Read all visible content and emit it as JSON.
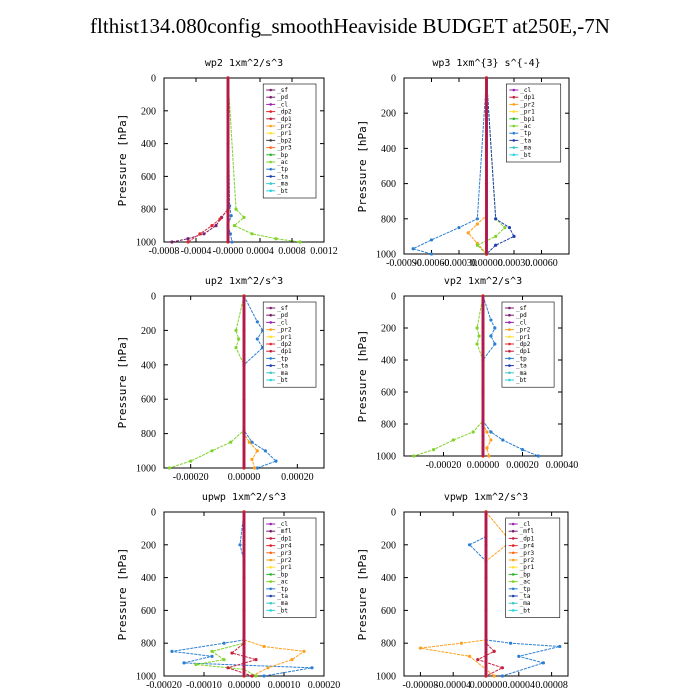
{
  "title": "flthist134.080config_smoothHeaviside  BUDGET at250E,-7N",
  "colors": {
    "_sf": "#7a1f6e",
    "_pd": "#7a1f6e",
    "_cl": "#9b1fb0",
    "_dp2": "#e3262d",
    "_pr2": "#ff9f1c",
    "_pr1": "#ffe033",
    "_bp": "#2db52d",
    "_bp1": "#2db52d",
    "_ac": "#7fd32a",
    "_tp": "#2a7fd3",
    "_ta": "#1f3fb0",
    "_ma": "#40c8c8",
    "_bt": "#2ad3e3",
    "_dp1": "#c71e3a",
    "_mfl": "#7a1f6e",
    "_pr4": "#e3262d",
    "_pr3": "#ff6a1c",
    "_bt_line": "#8b1a8b",
    "_main": "#d11f1f"
  },
  "chart_data": [
    {
      "type": "line",
      "title": "wp2   1xm^2/s^3",
      "ylabel": "Pressure [hPa]",
      "xlim": [
        -0.0008,
        0.0012
      ],
      "ylim": [
        1000,
        0
      ],
      "xticks": [
        "-0.0008",
        "-0.0004",
        "-0.0000",
        "0.0004",
        "0.0008",
        "0.0012"
      ],
      "yticks": [
        "0",
        "200",
        "400",
        "600",
        "800",
        "1000"
      ],
      "legend": [
        "_sf",
        "_pd",
        "_cl",
        "_dp2",
        "_dp1",
        "_pr2",
        "_pr1",
        "_bp2",
        "_pr3",
        "_bp",
        "_ac",
        "_tp",
        "_ta",
        "_ma",
        "_bt"
      ],
      "series": [
        {
          "name": "_pd",
          "x": [
            0,
            0,
            -8e-05,
            -0.00015,
            -0.0003,
            -0.0005,
            -0.0007
          ],
          "y": [
            0,
            800,
            850,
            900,
            950,
            980,
            1000
          ]
        },
        {
          "name": "_dp2",
          "x": [
            0,
            0,
            -0.0001,
            -0.0002,
            -0.00035,
            -0.0005
          ],
          "y": [
            0,
            800,
            860,
            900,
            950,
            1000
          ]
        },
        {
          "name": "_ac",
          "x": [
            0,
            0.0001,
            0.0002,
            8e-05,
            0.0003,
            0.0006,
            0.0009
          ],
          "y": [
            0,
            800,
            850,
            900,
            950,
            980,
            1000
          ]
        },
        {
          "name": "_tp",
          "x": [
            0,
            2e-05,
            4e-05,
            0,
            3e-05,
            5e-05
          ],
          "y": [
            0,
            780,
            840,
            900,
            950,
            1000
          ]
        },
        {
          "name": "_bt",
          "x": [
            0,
            0,
            0,
            0,
            0,
            0
          ],
          "y": [
            0,
            200,
            400,
            600,
            800,
            1000
          ]
        }
      ]
    },
    {
      "type": "line",
      "title": "wp3   1xm^{3} s^{-4}",
      "ylabel": "Pressure [hPa]",
      "xlim": [
        -0.0009,
        0.0009
      ],
      "ylim": [
        1000,
        0
      ],
      "xticks": [
        "-0.00090",
        "-0.00060",
        "-0.00030",
        "0.00000",
        "0.00030",
        "0.00060"
      ],
      "yticks": [
        "0",
        "200",
        "400",
        "600",
        "800",
        "1000"
      ],
      "legend": [
        "_cl",
        "_dp1",
        "_pr2",
        "_pr1",
        "_bp1",
        "_ac",
        "_tp",
        "_ta",
        "_ma",
        "_bt"
      ],
      "series": [
        {
          "name": "_pr2",
          "x": [
            0,
            0,
            -0.0001,
            -0.0002,
            -0.0001,
            0
          ],
          "y": [
            0,
            780,
            830,
            880,
            940,
            1000
          ]
        },
        {
          "name": "_ac",
          "x": [
            0,
            0.0001,
            0.0002,
            0.0001,
            -0.0001,
            0
          ],
          "y": [
            0,
            800,
            850,
            900,
            950,
            1000
          ]
        },
        {
          "name": "_ta",
          "x": [
            0,
            0.0001,
            0.00025,
            0.0003,
            0.0001,
            0
          ],
          "y": [
            0,
            800,
            850,
            900,
            950,
            1000
          ]
        },
        {
          "name": "_tp",
          "x": [
            0,
            -0.0001,
            -0.0003,
            -0.0006,
            -0.0008,
            -0.0006
          ],
          "y": [
            0,
            800,
            850,
            920,
            970,
            1000
          ]
        },
        {
          "name": "_bt",
          "x": [
            0,
            0,
            0,
            0,
            0,
            0
          ],
          "y": [
            0,
            200,
            400,
            600,
            800,
            1000
          ]
        }
      ]
    },
    {
      "type": "line",
      "title": "up2   1xm^2/s^3",
      "ylabel": "Pressure [hPa]",
      "xlim": [
        -0.0003,
        0.0003
      ],
      "ylim": [
        1000,
        0
      ],
      "xticks": [
        "-0.00020",
        "0.00000",
        "0.00020"
      ],
      "yticks": [
        "0",
        "200",
        "400",
        "600",
        "800",
        "1000"
      ],
      "legend": [
        "_sf",
        "_pd",
        "_cl",
        "_pr2",
        "_pr1",
        "_dp2",
        "_dp1",
        "_tp",
        "_ta",
        "_ma",
        "_bt"
      ],
      "series": [
        {
          "name": "_tp",
          "x": [
            0,
            5e-05,
            7e-05,
            5e-05,
            7e-05,
            0,
            0,
            3e-05,
            8e-05,
            0.00012,
            5e-05
          ],
          "y": [
            0,
            150,
            200,
            250,
            300,
            400,
            780,
            850,
            900,
            960,
            1000
          ]
        },
        {
          "name": "_ac",
          "x": [
            0,
            -3e-05,
            -2e-05,
            -3e-05,
            0,
            0,
            -5e-05,
            -0.00012,
            -0.0002,
            -0.00028
          ],
          "y": [
            0,
            200,
            250,
            300,
            400,
            780,
            850,
            900,
            960,
            1000
          ]
        },
        {
          "name": "_pr2",
          "x": [
            0,
            0,
            2e-05,
            5e-05,
            3e-05,
            4e-05
          ],
          "y": [
            0,
            800,
            850,
            900,
            950,
            1000
          ]
        },
        {
          "name": "_bt",
          "x": [
            0,
            0,
            0,
            0,
            0,
            0
          ],
          "y": [
            0,
            200,
            400,
            600,
            800,
            1000
          ]
        }
      ]
    },
    {
      "type": "line",
      "title": "vp2   1xm^2/s^3",
      "ylabel": "Pressure [hPa]",
      "xlim": [
        -0.0004,
        0.0004
      ],
      "ylim": [
        1000,
        0
      ],
      "xticks": [
        "-0.00020",
        "0.00000",
        "0.00020",
        "0.00040"
      ],
      "yticks": [
        "0",
        "200",
        "400",
        "600",
        "800",
        "1000"
      ],
      "legend": [
        "_sf",
        "_pd",
        "_cl",
        "_pr2",
        "_pr1",
        "_dp2",
        "_dp1",
        "_tp",
        "_ta",
        "_ma",
        "_bt"
      ],
      "series": [
        {
          "name": "_tp",
          "x": [
            0,
            4e-05,
            6e-05,
            4e-05,
            6e-05,
            0,
            0,
            4e-05,
            0.0001,
            0.0002,
            0.00028
          ],
          "y": [
            0,
            150,
            200,
            250,
            300,
            400,
            780,
            850,
            900,
            960,
            1000
          ]
        },
        {
          "name": "_ac",
          "x": [
            0,
            -3e-05,
            -2e-05,
            -3e-05,
            0,
            0,
            -5e-05,
            -0.00015,
            -0.00025,
            -0.00035
          ],
          "y": [
            0,
            200,
            250,
            300,
            400,
            780,
            850,
            900,
            960,
            1000
          ]
        },
        {
          "name": "_pr2",
          "x": [
            0,
            0,
            2e-05,
            4e-05,
            2e-05,
            3e-05
          ],
          "y": [
            0,
            800,
            850,
            900,
            950,
            1000
          ]
        },
        {
          "name": "_bt",
          "x": [
            0,
            0,
            0,
            0,
            0,
            0
          ],
          "y": [
            0,
            200,
            400,
            600,
            800,
            1000
          ]
        }
      ]
    },
    {
      "type": "line",
      "title": "upwp   1xm^2/s^3",
      "ylabel": "Pressure [hPa]",
      "xlim": [
        -0.0002,
        0.0002
      ],
      "ylim": [
        1000,
        0
      ],
      "xticks": [
        "-0.00020",
        "-0.00010",
        "0.00000",
        "0.00010",
        "0.00020"
      ],
      "yticks": [
        "0",
        "200",
        "400",
        "600",
        "800",
        "1000"
      ],
      "legend": [
        "_cl",
        "_mfl",
        "_dp1",
        "_pr4",
        "_pr3",
        "_pr2",
        "_pr1",
        "_bp",
        "_ac",
        "_tp",
        "_ta",
        "_ma",
        "_bt"
      ],
      "series": [
        {
          "name": "_tp",
          "x": [
            0,
            -1e-05,
            0,
            0,
            -5e-05,
            -0.00018,
            -8e-05,
            -0.00015,
            0.00017,
            5e-05
          ],
          "y": [
            0,
            200,
            300,
            780,
            800,
            850,
            880,
            920,
            950,
            1000
          ]
        },
        {
          "name": "_pr2",
          "x": [
            0,
            0,
            5e-05,
            0.00015,
            0.00012,
            6e-05,
            2e-05
          ],
          "y": [
            0,
            780,
            820,
            850,
            900,
            950,
            1000
          ]
        },
        {
          "name": "_ac",
          "x": [
            0,
            0,
            -8e-05,
            -5e-05,
            -0.00012,
            0,
            3e-05
          ],
          "y": [
            0,
            800,
            850,
            900,
            930,
            960,
            1000
          ]
        },
        {
          "name": "_dp1",
          "x": [
            0,
            0,
            -3e-05,
            3e-05,
            -4e-05,
            2e-05
          ],
          "y": [
            0,
            800,
            860,
            900,
            950,
            1000
          ]
        },
        {
          "name": "_bt",
          "x": [
            0,
            0,
            0,
            0,
            0,
            0
          ],
          "y": [
            0,
            200,
            400,
            600,
            800,
            1000
          ]
        }
      ]
    },
    {
      "type": "line",
      "title": "vpwp   1xm^2/s^3",
      "ylabel": "Pressure [hPa]",
      "xlim": [
        -0.0001,
        0.0001
      ],
      "ylim": [
        1000,
        0
      ],
      "xticks": [
        "-0.00008",
        "-0.00004",
        "0.00000",
        "0.00004",
        "0.00008"
      ],
      "yticks": [
        "0",
        "200",
        "400",
        "600",
        "800",
        "1000"
      ],
      "legend": [
        "_cl",
        "_mfl",
        "_dp1",
        "_pr4",
        "_pr3",
        "_pr2",
        "_pr1",
        "_bp",
        "_ac",
        "_tp",
        "_ta",
        "_ma",
        "_bt"
      ],
      "series": [
        {
          "name": "_tp",
          "x": [
            0,
            0,
            -2e-05,
            0,
            0,
            3e-05,
            9e-05,
            4e-05,
            7e-05,
            2e-05
          ],
          "y": [
            0,
            150,
            200,
            300,
            780,
            800,
            820,
            880,
            920,
            1000
          ]
        },
        {
          "name": "_pr2",
          "x": [
            0,
            3e-05,
            0,
            0,
            -3e-05,
            -8e-05,
            -2e-05,
            1e-05
          ],
          "y": [
            0,
            180,
            300,
            780,
            800,
            830,
            880,
            1000
          ]
        },
        {
          "name": "_dp1",
          "x": [
            0,
            0,
            1e-05,
            -1e-05,
            2e-05,
            0
          ],
          "y": [
            0,
            800,
            850,
            900,
            950,
            1000
          ]
        },
        {
          "name": "_bt",
          "x": [
            0,
            0,
            0,
            0,
            0,
            0
          ],
          "y": [
            0,
            200,
            400,
            600,
            800,
            1000
          ]
        }
      ]
    }
  ]
}
